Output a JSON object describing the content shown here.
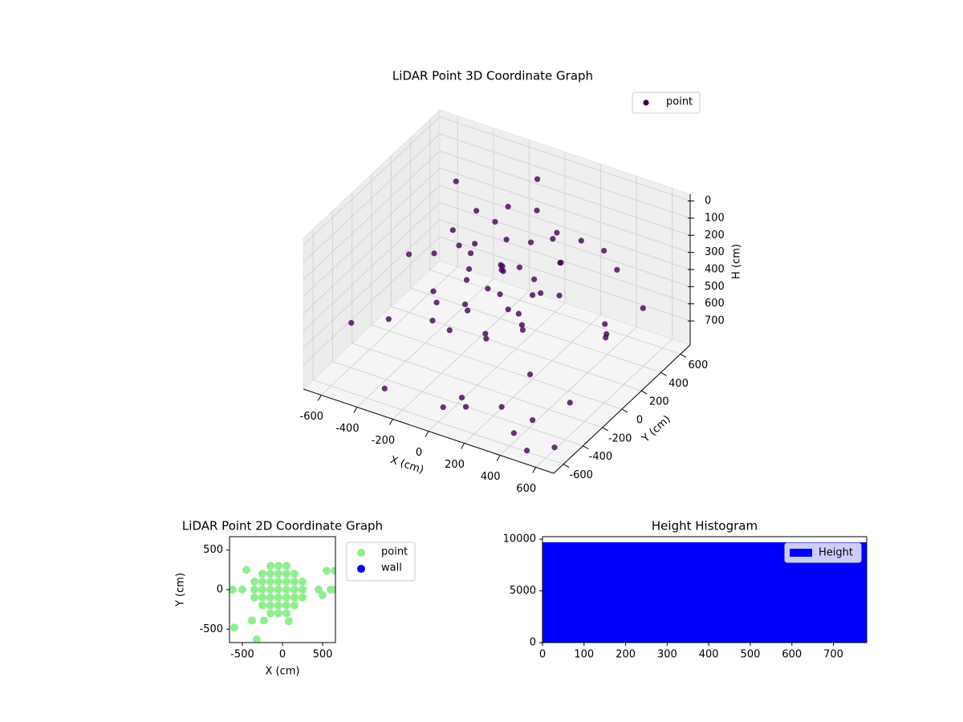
{
  "chart_data": [
    {
      "type": "scatter3d",
      "title": "LiDAR Point 3D Coordinate Graph",
      "xlabel": "X (cm)",
      "ylabel": "Y (cm)",
      "zlabel": "H (cm)",
      "xlim": [
        -700,
        700
      ],
      "ylim": [
        -700,
        700
      ],
      "zlim": [
        -40,
        840
      ],
      "z_inverted": true,
      "xticks": [
        -600,
        -400,
        -200,
        0,
        200,
        400,
        600
      ],
      "yticks": [
        -600,
        -400,
        -200,
        0,
        200,
        400,
        600
      ],
      "zticks": [
        0,
        100,
        200,
        300,
        400,
        500,
        600,
        700
      ],
      "grid": true,
      "legend": "upper right",
      "series": [
        {
          "name": "point",
          "color": "#440154",
          "x": [
            -300,
            -250,
            -100,
            50,
            200,
            300,
            300,
            200,
            0,
            -200,
            -300,
            -250,
            -100,
            100,
            200,
            100,
            -100,
            -150,
            0,
            50,
            -350,
            -320,
            -200,
            0,
            150,
            250,
            350,
            250,
            100,
            -100,
            -250,
            -50,
            0,
            100,
            -50,
            150,
            -150,
            50,
            200,
            -200,
            -500,
            -600,
            -650,
            -550,
            -300,
            0,
            50,
            100,
            300,
            450,
            550,
            500,
            650,
            600,
            500,
            600,
            400,
            300,
            200,
            -100,
            450,
            350,
            550
          ],
          "y": [
            100,
            250,
            300,
            320,
            250,
            100,
            -100,
            -250,
            -300,
            -250,
            -100,
            150,
            250,
            200,
            0,
            -150,
            -100,
            50,
            100,
            -50,
            0,
            200,
            350,
            350,
            300,
            200,
            0,
            -200,
            -300,
            -300,
            -200,
            0,
            50,
            50,
            150,
            -50,
            -50,
            -200,
            -100,
            100,
            500,
            200,
            -300,
            -100,
            -600,
            -550,
            -450,
            -500,
            -500,
            -650,
            -700,
            -550,
            -600,
            -350,
            200,
            400,
            500,
            550,
            500,
            600,
            300,
            -300,
            100
          ],
          "z": [
            200,
            150,
            100,
            80,
            120,
            180,
            250,
            300,
            350,
            400,
            450,
            500,
            450,
            400,
            350,
            300,
            250,
            200,
            150,
            200,
            300,
            350,
            250,
            300,
            200,
            250,
            300,
            400,
            450,
            500,
            550,
            400,
            300,
            250,
            350,
            450,
            500,
            550,
            500,
            300,
            200,
            500,
            650,
            700,
            750,
            780,
            760,
            770,
            700,
            720,
            760,
            680,
            760,
            650,
            600,
            500,
            400,
            350,
            300,
            100,
            650,
            600,
            450
          ]
        }
      ]
    },
    {
      "type": "scatter",
      "title": "LiDAR Point 2D Coordinate Graph",
      "xlabel": "X (cm)",
      "ylabel": "Y (cm)",
      "xlim": [
        -660,
        660
      ],
      "ylim": [
        -670,
        670
      ],
      "xticks": [
        -500,
        0,
        500
      ],
      "yticks": [
        -500,
        0,
        500
      ],
      "grid": false,
      "legend": "outside right",
      "series": [
        {
          "name": "point",
          "color": "#90ee90",
          "x": [
            -350,
            -350,
            -350,
            -250,
            -250,
            -250,
            -250,
            -250,
            -150,
            -150,
            -150,
            -150,
            -150,
            -150,
            -150,
            -50,
            -50,
            -50,
            -50,
            -50,
            -50,
            -50,
            50,
            50,
            50,
            50,
            50,
            50,
            50,
            150,
            150,
            150,
            150,
            150,
            250,
            250,
            250,
            -600,
            -320,
            -380,
            -230,
            80,
            550,
            650,
            500,
            -450,
            -620,
            -500,
            450,
            600,
            650
          ],
          "y": [
            -100,
            0,
            100,
            -200,
            -100,
            0,
            100,
            200,
            -300,
            -200,
            -100,
            0,
            100,
            200,
            300,
            -300,
            -200,
            -100,
            0,
            100,
            200,
            300,
            -300,
            -200,
            -100,
            0,
            100,
            200,
            300,
            -200,
            -100,
            0,
            100,
            200,
            -100,
            0,
            100,
            -480,
            -630,
            -390,
            -390,
            -400,
            240,
            240,
            -70,
            250,
            0,
            0,
            0,
            0,
            0
          ]
        },
        {
          "name": "wall",
          "color": "#0000ff",
          "x": [],
          "y": []
        }
      ]
    },
    {
      "type": "hist",
      "title": "Height Histogram",
      "xlim": [
        0,
        780
      ],
      "ylim": [
        0,
        10240
      ],
      "xticks": [
        0,
        100,
        200,
        300,
        400,
        500,
        600,
        700
      ],
      "yticks": [
        0,
        5000,
        10000
      ],
      "grid": false,
      "legend": "upper right",
      "series": [
        {
          "name": "Height",
          "color": "#0000ff",
          "bins": [
            0,
            780
          ],
          "counts": [
            9700
          ]
        }
      ]
    }
  ]
}
